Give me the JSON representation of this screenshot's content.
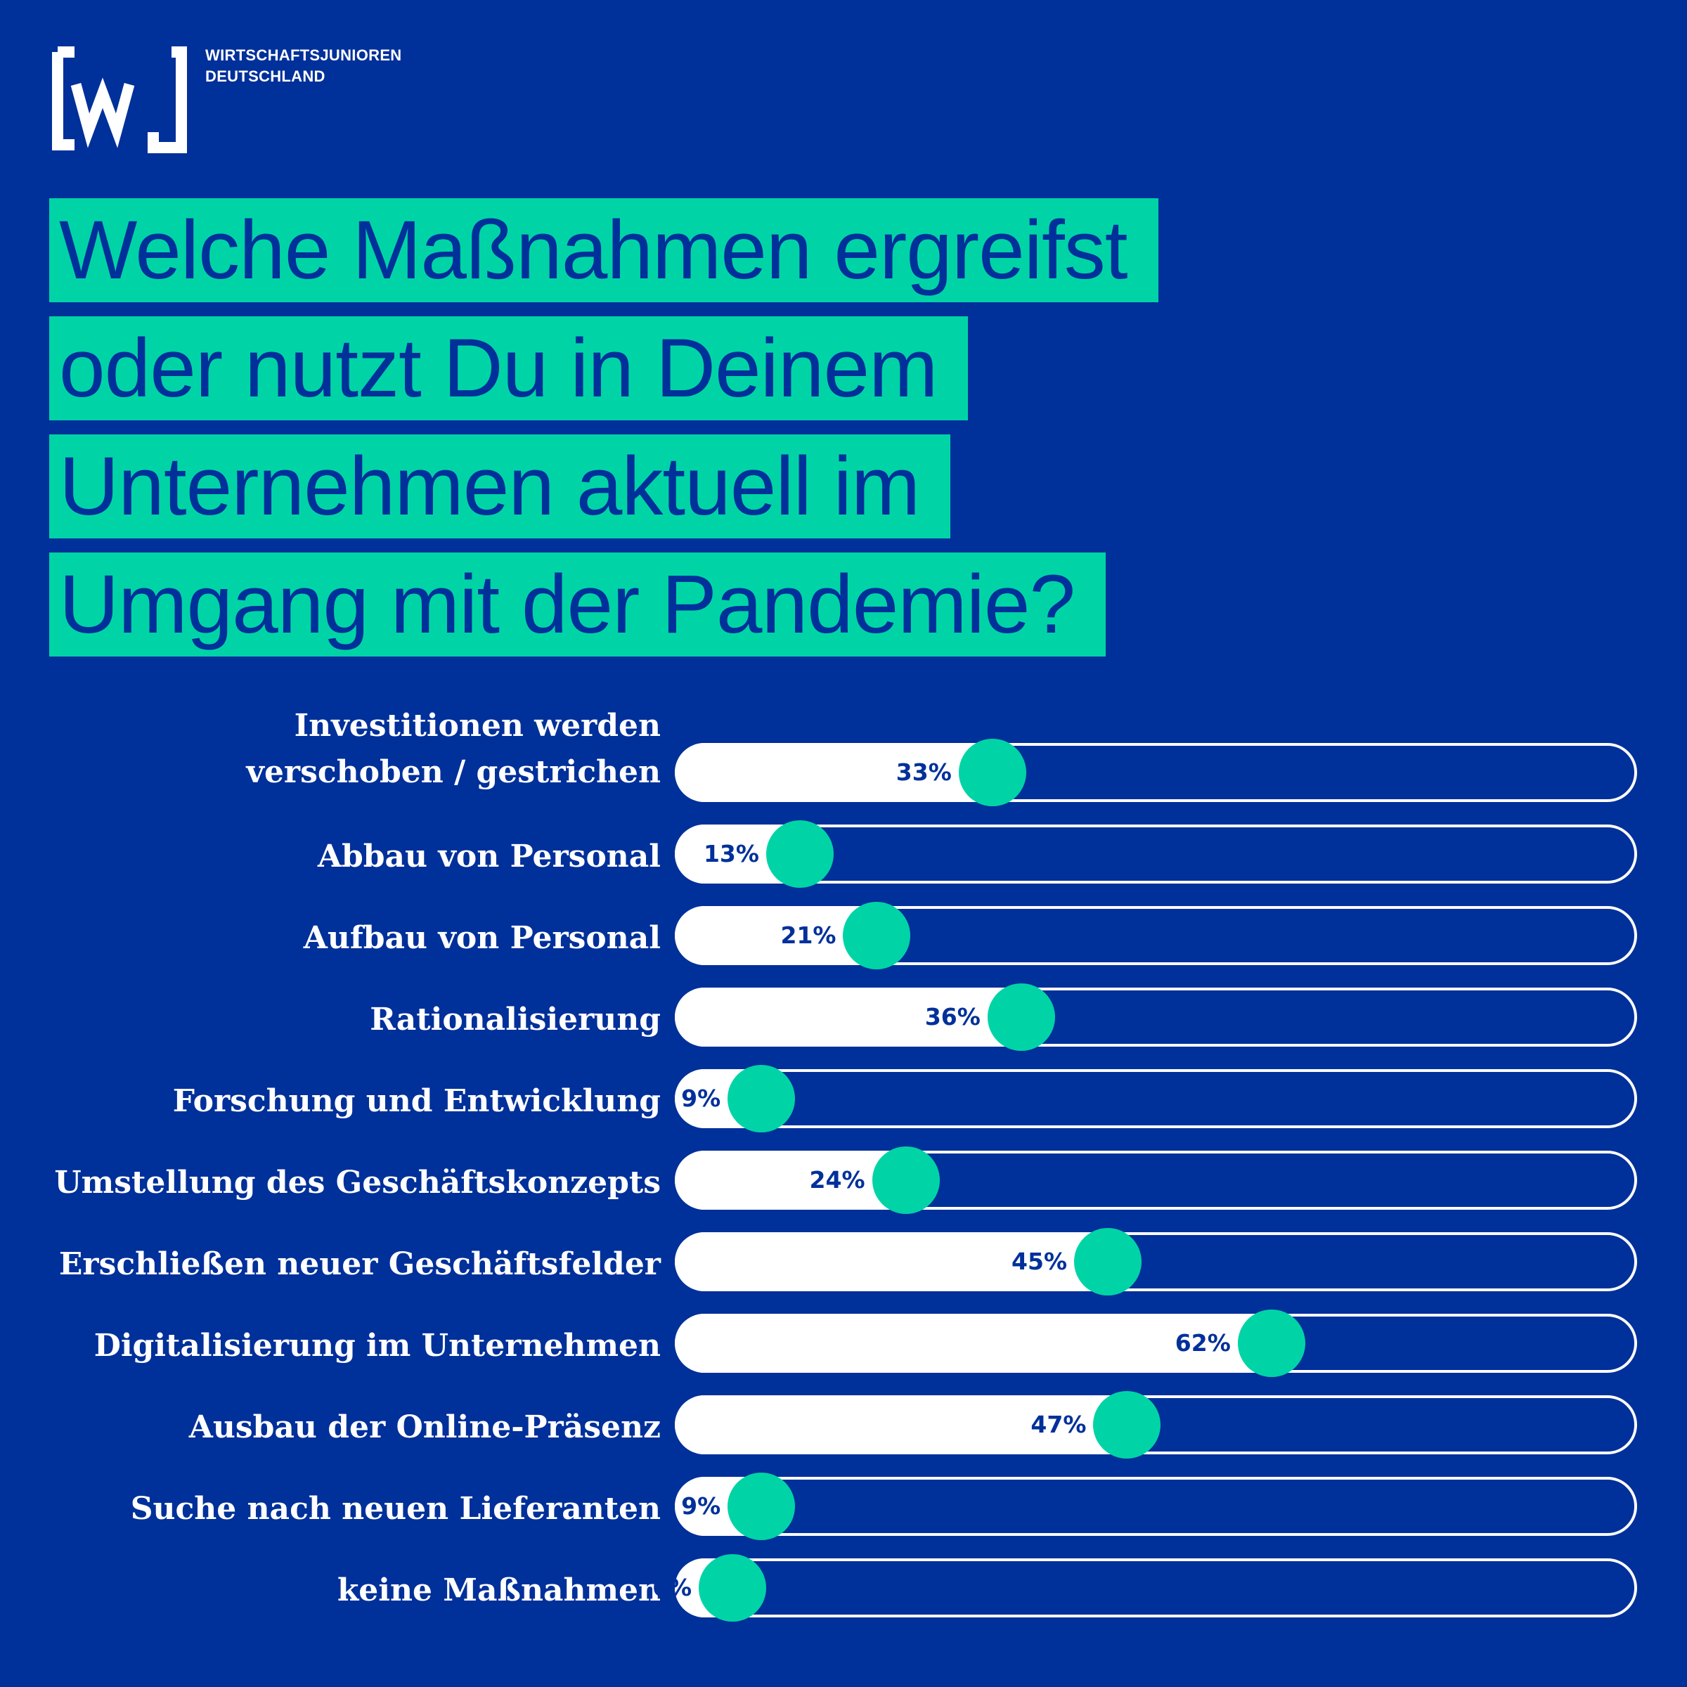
{
  "brand": {
    "logo_line1": "WIRTSCHAFTSJUNIOREN",
    "logo_line2": "DEUTSCHLAND",
    "colors": {
      "background": "#00309a",
      "accent": "#00d4a6",
      "bar": "#ffffff"
    }
  },
  "chart_data": {
    "type": "bar",
    "orientation": "horizontal",
    "title_lines": [
      "Welche Maßnahmen ergreifst",
      "oder nutzt Du in Deinem",
      "Unternehmen aktuell im",
      "Umgang mit der Pandemie?"
    ],
    "categories": [
      [
        "Investitionen werden",
        "verschoben / gestrichen"
      ],
      [
        "Abbau von Personal"
      ],
      [
        "Aufbau von Personal"
      ],
      [
        "Rationalisierung"
      ],
      [
        "Forschung und Entwicklung"
      ],
      [
        "Umstellung des Geschäftskonzepts"
      ],
      [
        "Erschließen neuer Geschäftsfelder"
      ],
      [
        "Digitalisierung im Unternehmen"
      ],
      [
        "Ausbau der Online-Präsenz"
      ],
      [
        "Suche nach neuen Lieferanten"
      ],
      [
        "keine Maßnahmen"
      ]
    ],
    "values": [
      33,
      13,
      21,
      36,
      9,
      24,
      45,
      62,
      47,
      9,
      6
    ],
    "value_labels": [
      "33%",
      "13%",
      "21%",
      "36%",
      "9%",
      "24%",
      "45%",
      "62%",
      "47%",
      "9%",
      "6%"
    ],
    "unit": "%",
    "xlim": [
      0,
      100
    ]
  }
}
